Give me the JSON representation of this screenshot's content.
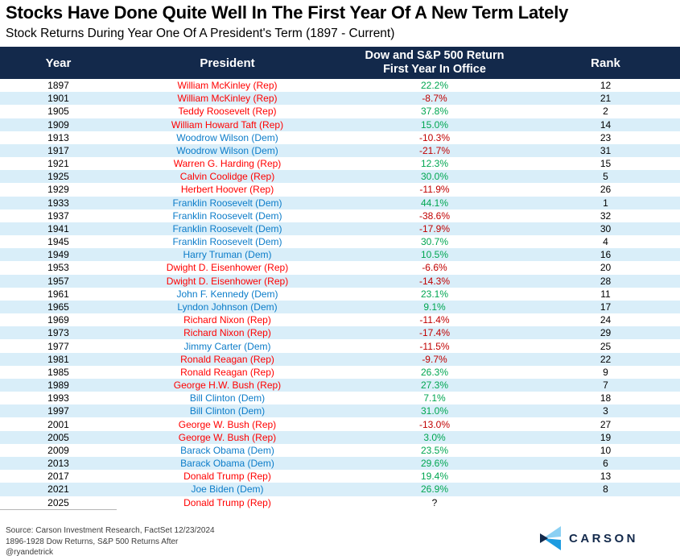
{
  "title": "Stocks Have Done Quite Well In The First Year Of A New Term Lately",
  "subtitle": "Stock Returns During Year One Of A President's Term (1897 - Current)",
  "header": {
    "year": "Year",
    "president": "President",
    "return_line1": "Dow and S&P 500 Return",
    "return_line2": "First Year In Office",
    "rank": "Rank"
  },
  "chart_data": {
    "type": "table",
    "title": "Stocks Have Done Quite Well In The First Year Of A New Term Lately",
    "subtitle": "Stock Returns During Year One Of A President's Term (1897 - Current)",
    "columns": [
      "Year",
      "President",
      "Dow and S&P 500 Return First Year In Office",
      "Rank"
    ],
    "rows": [
      [
        1897,
        "William McKinley (Rep)",
        "22.2%",
        "12"
      ],
      [
        1901,
        "William McKinley (Rep)",
        "-8.7%",
        "21"
      ],
      [
        1905,
        "Teddy Roosevelt (Rep)",
        "37.8%",
        "2"
      ],
      [
        1909,
        "William Howard Taft (Rep)",
        "15.0%",
        "14"
      ],
      [
        1913,
        "Woodrow Wilson (Dem)",
        "-10.3%",
        "23"
      ],
      [
        1917,
        "Woodrow Wilson (Dem)",
        "-21.7%",
        "31"
      ],
      [
        1921,
        "Warren G. Harding (Rep)",
        "12.3%",
        "15"
      ],
      [
        1925,
        "Calvin Coolidge (Rep)",
        "30.0%",
        "5"
      ],
      [
        1929,
        "Herbert Hoover (Rep)",
        "-11.9%",
        "26"
      ],
      [
        1933,
        "Franklin Roosevelt (Dem)",
        "44.1%",
        "1"
      ],
      [
        1937,
        "Franklin Roosevelt (Dem)",
        "-38.6%",
        "32"
      ],
      [
        1941,
        "Franklin Roosevelt (Dem)",
        "-17.9%",
        "30"
      ],
      [
        1945,
        "Franklin Roosevelt (Dem)",
        "30.7%",
        "4"
      ],
      [
        1949,
        "Harry Truman (Dem)",
        "10.5%",
        "16"
      ],
      [
        1953,
        "Dwight D. Eisenhower (Rep)",
        "-6.6%",
        "20"
      ],
      [
        1957,
        "Dwight D. Eisenhower (Rep)",
        "-14.3%",
        "28"
      ],
      [
        1961,
        "John F. Kennedy (Dem)",
        "23.1%",
        "11"
      ],
      [
        1965,
        "Lyndon Johnson (Dem)",
        "9.1%",
        "17"
      ],
      [
        1969,
        "Richard Nixon (Rep)",
        "-11.4%",
        "24"
      ],
      [
        1973,
        "Richard Nixon (Rep)",
        "-17.4%",
        "29"
      ],
      [
        1977,
        "Jimmy Carter (Dem)",
        "-11.5%",
        "25"
      ],
      [
        1981,
        "Ronald Reagan (Rep)",
        "-9.7%",
        "22"
      ],
      [
        1985,
        "Ronald Reagan (Rep)",
        "26.3%",
        "9"
      ],
      [
        1989,
        "George H.W. Bush (Rep)",
        "27.3%",
        "7"
      ],
      [
        1993,
        "Bill Clinton (Dem)",
        "7.1%",
        "18"
      ],
      [
        1997,
        "Bill Clinton (Dem)",
        "31.0%",
        "3"
      ],
      [
        2001,
        "George W. Bush (Rep)",
        "-13.0%",
        "27"
      ],
      [
        2005,
        "George W. Bush (Rep)",
        "3.0%",
        "19"
      ],
      [
        2009,
        "Barack Obama (Dem)",
        "23.5%",
        "10"
      ],
      [
        2013,
        "Barack Obama (Dem)",
        "29.6%",
        "6"
      ],
      [
        2017,
        "Donald Trump (Rep)",
        "19.4%",
        "13"
      ],
      [
        2021,
        "Joe Biden (Dem)",
        "26.9%",
        "8"
      ],
      [
        2025,
        "Donald Trump (Rep)",
        "?",
        ""
      ]
    ]
  },
  "footer": {
    "source_line1": "Source: Carson Investment Research, FactSet 12/23/2024",
    "source_line2": "1896-1928 Dow Returns, S&P 500 Returns After",
    "handle": "@ryandetrick"
  },
  "logo": {
    "text": "CARSON"
  },
  "colors": {
    "header_navy": "#13294B",
    "stripe_blue": "#D9EEF9",
    "rep_red": "#FF0000",
    "dem_blue": "#0B7CC9",
    "positive_green": "#00A651",
    "negative_red": "#C00000",
    "neutral_black": "#000000",
    "footer_gray": "#3C3C3C",
    "logo_light_blue": "#8BD0F3",
    "logo_mid_blue": "#1D9BE0",
    "logo_navy": "#13294B"
  }
}
